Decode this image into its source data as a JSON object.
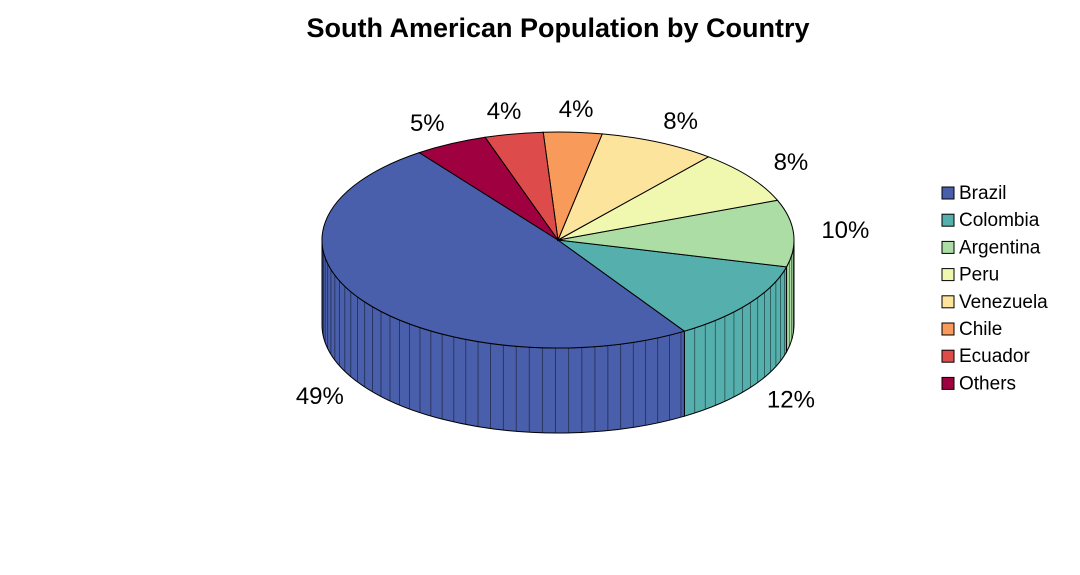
{
  "chart_data": {
    "type": "pie",
    "title": "South American Population by Country",
    "categories": [
      "Brazil",
      "Colombia",
      "Argentina",
      "Peru",
      "Venezuela",
      "Chile",
      "Ecuador",
      "Others"
    ],
    "values": [
      49,
      12,
      10,
      8,
      8,
      4,
      4,
      5
    ],
    "value_labels": [
      "49%",
      "12%",
      "10%",
      "8%",
      "8%",
      "4%",
      "4%",
      "5%"
    ],
    "colors": [
      "#4a5fab",
      "#55b0ad",
      "#abdda4",
      "#f0f8b0",
      "#fde49c",
      "#f89a5a",
      "#dd4b4b",
      "#9e0040"
    ],
    "legend": "right"
  }
}
